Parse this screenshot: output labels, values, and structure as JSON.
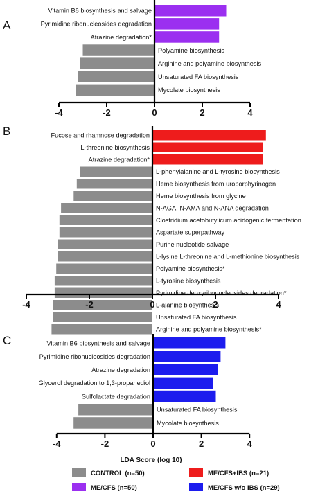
{
  "chart_data": [
    {
      "type": "bar",
      "panel": "A",
      "orientation": "horizontal",
      "xlim": [
        -4,
        4
      ],
      "ticks": [
        -4,
        -2,
        0,
        2,
        4
      ],
      "bars": [
        {
          "label": "Vitamin B6 biosynthesis and salvage",
          "value": 3.0,
          "group": "ME/CFS"
        },
        {
          "label": "Pyrimidine ribonucleosides degradation",
          "value": 2.7,
          "group": "ME/CFS"
        },
        {
          "label": "Atrazine degradation*",
          "value": 2.7,
          "group": "ME/CFS"
        },
        {
          "label": "Polyamine biosynthesis",
          "value": -3.0,
          "group": "CONTROL"
        },
        {
          "label": "Arginine and polyamine biosynthesis",
          "value": -3.1,
          "group": "CONTROL"
        },
        {
          "label": "Unsaturated FA biosynthesis",
          "value": -3.2,
          "group": "CONTROL"
        },
        {
          "label": "Mycolate biosynthesis",
          "value": -3.3,
          "group": "CONTROL"
        }
      ]
    },
    {
      "type": "bar",
      "panel": "B",
      "orientation": "horizontal",
      "xlim": [
        -4,
        4
      ],
      "ticks": [
        -4,
        -2,
        0,
        2,
        4
      ],
      "bars": [
        {
          "label": "Fucose and rhamnose degradation",
          "value": 3.6,
          "group": "ME/CFS+IBS"
        },
        {
          "label": "L-threonine biosynthesis",
          "value": 3.5,
          "group": "ME/CFS+IBS"
        },
        {
          "label": "Atrazine degradation*",
          "value": 3.5,
          "group": "ME/CFS+IBS"
        },
        {
          "label": "L-phenylalanine and L-tyrosine biosynthesis",
          "value": -2.3,
          "group": "CONTROL"
        },
        {
          "label": "Heme biosynthesis from uroporphyrinogen",
          "value": -2.4,
          "group": "CONTROL"
        },
        {
          "label": "Heme biosynthesis from glycine",
          "value": -2.5,
          "group": "CONTROL"
        },
        {
          "label": "N-AGA, N-AMA and N-ANA degradation",
          "value": -2.9,
          "group": "CONTROL"
        },
        {
          "label": "Clostridium acetobutylicum acidogenic fermentation",
          "value": -2.95,
          "group": "CONTROL"
        },
        {
          "label": "Aspartate superpathway",
          "value": -2.95,
          "group": "CONTROL"
        },
        {
          "label": "Purine nucleotide salvage",
          "value": -3.0,
          "group": "CONTROL"
        },
        {
          "label": "L-lysine L-threonine and L-methionine biosynthesis",
          "value": -3.0,
          "group": "CONTROL"
        },
        {
          "label": "Polyamine biosynthesis*",
          "value": -3.05,
          "group": "CONTROL"
        },
        {
          "label": "L-tyrosine biosynthesis",
          "value": -3.1,
          "group": "CONTROL"
        },
        {
          "label": "Pyrimidine deoxyribonucleosides degradation*",
          "value": -3.1,
          "group": "CONTROL"
        },
        {
          "label": "L-alanine biosynthesis",
          "value": -3.15,
          "group": "CONTROL"
        },
        {
          "label": "Unsaturated FA biosynthesis",
          "value": -3.15,
          "group": "CONTROL"
        },
        {
          "label": "Arginine and polyamine biosynthesis*",
          "value": -3.2,
          "group": "CONTROL"
        }
      ]
    },
    {
      "type": "bar",
      "panel": "C",
      "orientation": "horizontal",
      "xlim": [
        -4,
        4
      ],
      "ticks": [
        -4,
        -2,
        0,
        2,
        4
      ],
      "xlabel": "LDA Score (log 10)",
      "bars": [
        {
          "label": "Vitamin B6 biosynthesis and salvage",
          "value": 3.0,
          "group": "ME/CFS w/o IBS"
        },
        {
          "label": "Pyrimidine ribonucleosides degradation",
          "value": 2.8,
          "group": "ME/CFS w/o IBS"
        },
        {
          "label": "Atrazine degradation",
          "value": 2.7,
          "group": "ME/CFS w/o IBS"
        },
        {
          "label": "Glycerol degradation to 1,3-propanediol",
          "value": 2.5,
          "group": "ME/CFS w/o IBS"
        },
        {
          "label": "Sulfolactate degradation",
          "value": 2.6,
          "group": "ME/CFS w/o IBS"
        },
        {
          "label": "Unsaturated FA biosynthesis",
          "value": -3.1,
          "group": "CONTROL"
        },
        {
          "label": "Mycolate biosynthesis",
          "value": -3.3,
          "group": "CONTROL"
        }
      ]
    }
  ],
  "legend": {
    "placement": "bottom",
    "items": [
      {
        "label": "CONTROL (n=50)",
        "color": "#8c8c8c"
      },
      {
        "label": "ME/CFS+IBS (n=21)",
        "color": "#ee1c1c"
      },
      {
        "label": "ME/CFS (n=50)",
        "color": "#9b2ff0"
      },
      {
        "label": "ME/CFS w/o IBS (n=29)",
        "color": "#1c1cee"
      }
    ]
  },
  "colors": {
    "CONTROL": "#8c8c8c",
    "ME/CFS": "#9b2ff0",
    "ME/CFS+IBS": "#ee1c1c",
    "ME/CFS w/o IBS": "#1c1cee"
  }
}
